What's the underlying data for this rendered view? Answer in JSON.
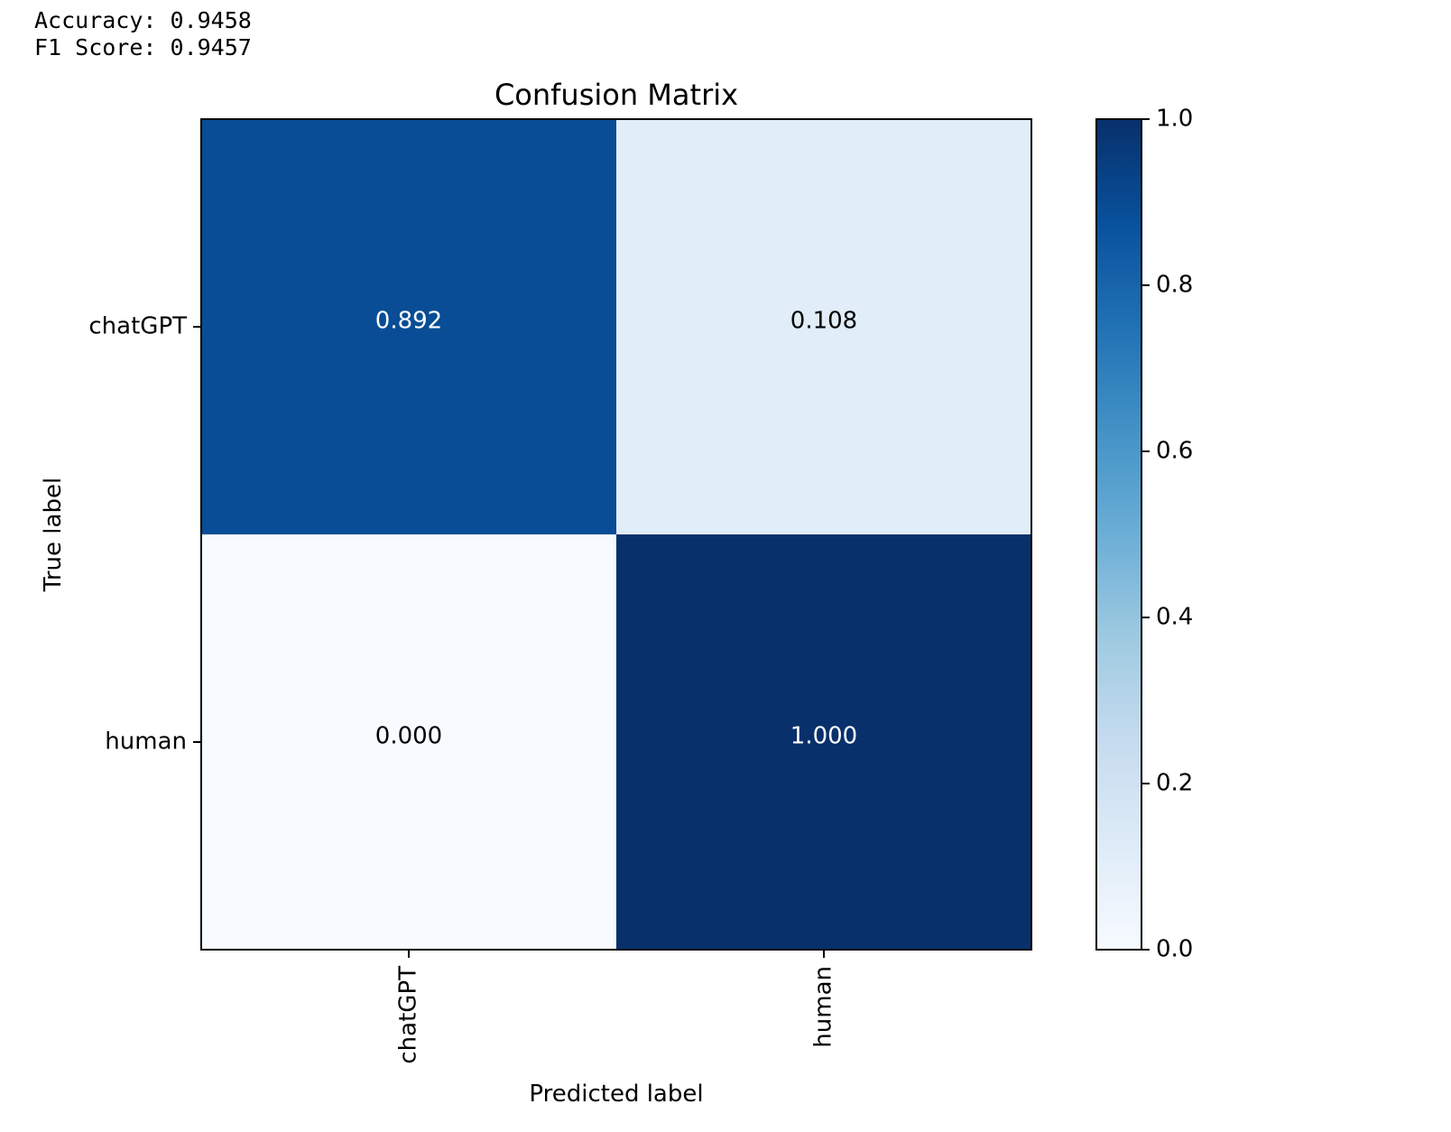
{
  "output": {
    "accuracy_line": "Accuracy: 0.9458",
    "f1_line": "F1 Score: 0.9457"
  },
  "chart_data": {
    "type": "heatmap",
    "title": "Confusion Matrix",
    "xlabel": "Predicted label",
    "ylabel": "True label",
    "x_categories": [
      "chatGPT",
      "human"
    ],
    "y_categories": [
      "chatGPT",
      "human"
    ],
    "values": [
      [
        0.892,
        0.108
      ],
      [
        0.0,
        1.0
      ]
    ],
    "cell_labels": [
      [
        "0.892",
        "0.108"
      ],
      [
        "0.000",
        "1.000"
      ]
    ],
    "colormap": "Blues",
    "colorbar": {
      "range": [
        0.0,
        1.0
      ],
      "ticks": [
        0.0,
        0.2,
        0.4,
        0.6,
        0.8,
        1.0
      ],
      "tick_labels": [
        "0.0",
        "0.2",
        "0.4",
        "0.6",
        "0.8",
        "1.0"
      ]
    },
    "grid": false
  }
}
